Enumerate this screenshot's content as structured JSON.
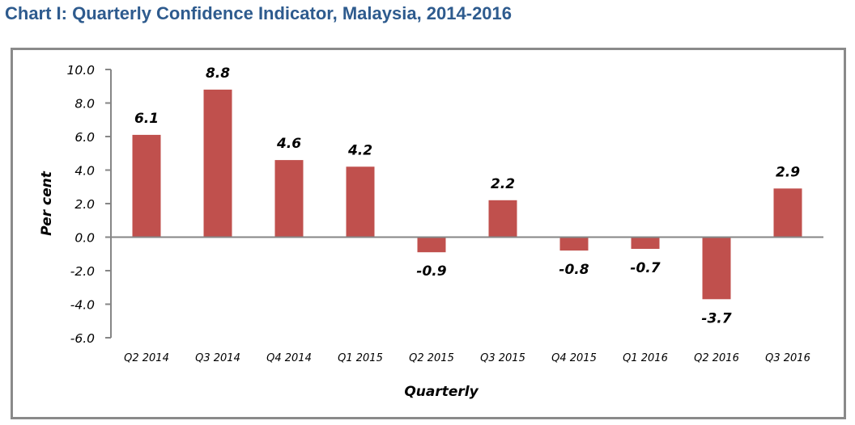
{
  "page": {
    "title": "Chart I: Quarterly Confidence Indicator, Malaysia, 2014-2016"
  },
  "chart_data": {
    "type": "bar",
    "title": "Chart I: Quarterly Confidence Indicator, Malaysia, 2014-2016",
    "xlabel": "Quarterly",
    "ylabel": "Per cent",
    "ylim": [
      -6.0,
      10.0
    ],
    "ytick_step": 2.0,
    "yticks": [
      "10.0",
      "8.0",
      "6.0",
      "4.0",
      "2.0",
      "0.0",
      "-2.0",
      "-4.0",
      "-6.0"
    ],
    "grid": false,
    "legend": "none",
    "categories": [
      "Q2 2014",
      "Q3 2014",
      "Q4 2014",
      "Q1 2015",
      "Q2 2015",
      "Q3 2015",
      "Q4 2015",
      "Q1 2016",
      "Q2 2016",
      "Q3 2016"
    ],
    "values": [
      6.1,
      8.8,
      4.6,
      4.2,
      -0.9,
      2.2,
      -0.8,
      -0.7,
      -3.7,
      2.9
    ],
    "data_labels": [
      "6.1",
      "8.8",
      "4.6",
      "4.2",
      "-0.9",
      "2.2",
      "-0.8",
      "-0.7",
      "-3.7",
      "2.9"
    ],
    "colors": {
      "bar": "#C0504D",
      "axis": "#868686",
      "title": "#2E5B8E"
    }
  }
}
